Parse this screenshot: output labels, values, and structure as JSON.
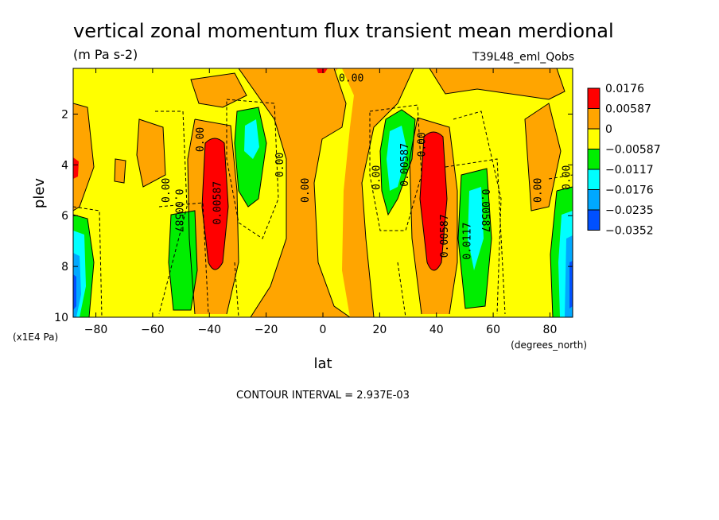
{
  "chart_data": {
    "type": "contour",
    "title": "vertical zonal momentum flux transient mean merdional",
    "units": "(m Pa s-2)",
    "run_label": "T39L48_eml_Qobs",
    "xlabel": "lat",
    "x_units": "(degrees_north)",
    "ylabel": "plev",
    "y_units": "(x1E4 Pa)",
    "xlim": [
      -88,
      88
    ],
    "ylim": [
      10,
      0.2
    ],
    "x_ticks": [
      -80,
      -60,
      -40,
      -20,
      0,
      20,
      40,
      60,
      80
    ],
    "y_ticks": [
      2,
      4,
      6,
      8,
      10
    ],
    "contour_interval_text": "CONTOUR INTERVAL = 2.937E-03",
    "legend": {
      "labels": [
        "0.0176",
        "0.00587",
        "0",
        "−0.00587",
        "−0.0117",
        "−0.0176",
        "−0.0235",
        "−0.0352"
      ],
      "colors": [
        "#ff0000",
        "#ffa500",
        "#ffff00",
        "#00ee00",
        "#00ffff",
        "#00a8ff",
        "#0050ff"
      ]
    },
    "contour_labels": [
      {
        "text": "0.00",
        "x": 10,
        "y": 0.6,
        "rotate": 0
      },
      {
        "text": "0.00",
        "x": -55,
        "y": 5.0,
        "rotate": -90
      },
      {
        "text": "0.00",
        "x": -43,
        "y": 3.0,
        "rotate": -90
      },
      {
        "text": "0.00587",
        "x": -51,
        "y": 5.8,
        "rotate": 90
      },
      {
        "text": "0.00587",
        "x": -37,
        "y": 5.5,
        "rotate": -90
      },
      {
        "text": "0.00",
        "x": -15,
        "y": 4.0,
        "rotate": -90
      },
      {
        "text": "0.00",
        "x": -6,
        "y": 5.0,
        "rotate": -90
      },
      {
        "text": "0.00",
        "x": 19,
        "y": 4.5,
        "rotate": -90
      },
      {
        "text": "0.00587",
        "x": 29,
        "y": 4.0,
        "rotate": -90
      },
      {
        "text": "0.00",
        "x": 35,
        "y": 3.2,
        "rotate": -90
      },
      {
        "text": "0.00587",
        "x": 43,
        "y": 6.8,
        "rotate": -90
      },
      {
        "text": "0.0117",
        "x": 51,
        "y": 7.0,
        "rotate": -90
      },
      {
        "text": "0.00587",
        "x": 57,
        "y": 5.8,
        "rotate": 90
      },
      {
        "text": "0.00",
        "x": 76,
        "y": 5.0,
        "rotate": -90
      },
      {
        "text": "0.00",
        "x": 86,
        "y": 4.5,
        "rotate": -90
      }
    ]
  }
}
